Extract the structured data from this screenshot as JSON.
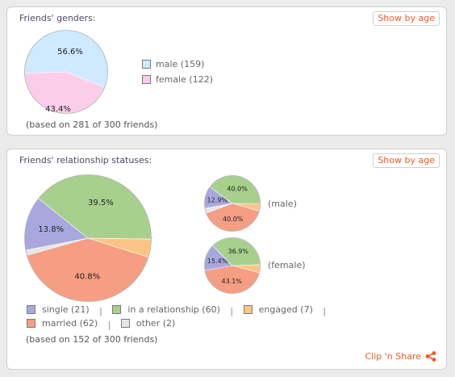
{
  "genders": {
    "title": "Friends' genders:",
    "show_by_age": "Show by age",
    "footnote": "(based on 281 of 300 friends)",
    "legend": [
      {
        "label": "male (159)",
        "color": "#cfe9fe"
      },
      {
        "label": "female (122)",
        "color": "#fccde9"
      }
    ],
    "chart_data": {
      "type": "pie",
      "categories": [
        "male",
        "female"
      ],
      "values": [
        56.6,
        43.4
      ],
      "colors": [
        "#cfe9fe",
        "#fccde9"
      ],
      "data_labels": [
        "56.6%",
        "43.4%"
      ]
    }
  },
  "relations": {
    "title": "Friends' relationship statuses:",
    "show_by_age": "Show by age",
    "footnote": "(based on 152 of 300 friends)",
    "clip_share": "Clip 'n Share",
    "legend": [
      {
        "label": "single (21)",
        "color": "#a8a8df"
      },
      {
        "label": "in a relationship (60)",
        "color": "#a7d08c"
      },
      {
        "label": "engaged (7)",
        "color": "#fcc585"
      },
      {
        "label": "married (62)",
        "color": "#f59e83"
      },
      {
        "label": "other (2)",
        "color": "#e6e6e6"
      }
    ],
    "separator": "|",
    "male_label": "(male)",
    "female_label": "(female)",
    "chart_data": [
      {
        "type": "pie",
        "name": "all",
        "categories": [
          "single",
          "in a relationship",
          "engaged",
          "married",
          "other"
        ],
        "values": [
          13.8,
          39.5,
          4.6,
          40.8,
          1.3
        ],
        "colors": [
          "#a8a8df",
          "#a7d08c",
          "#fcc585",
          "#f59e83",
          "#e6e6e6"
        ],
        "data_labels": [
          "13.8%",
          "39.5%",
          "",
          "40.8%",
          ""
        ]
      },
      {
        "type": "pie",
        "name": "male",
        "categories": [
          "single",
          "in a relationship",
          "engaged",
          "married",
          "other"
        ],
        "values": [
          12.9,
          40.0,
          4.3,
          40.0,
          2.8
        ],
        "colors": [
          "#a8a8df",
          "#a7d08c",
          "#fcc585",
          "#f59e83",
          "#e6e6e6"
        ],
        "data_labels": [
          "12.9%",
          "40.0%",
          "",
          "40.0%",
          ""
        ]
      },
      {
        "type": "pie",
        "name": "female",
        "categories": [
          "single",
          "in a relationship",
          "engaged",
          "married",
          "other"
        ],
        "values": [
          15.4,
          36.9,
          4.6,
          43.1,
          0.0
        ],
        "colors": [
          "#a8a8df",
          "#a7d08c",
          "#fcc585",
          "#f59e83",
          "#e6e6e6"
        ],
        "data_labels": [
          "15.4%",
          "36.9%",
          "",
          "43.1%",
          ""
        ]
      }
    ]
  }
}
